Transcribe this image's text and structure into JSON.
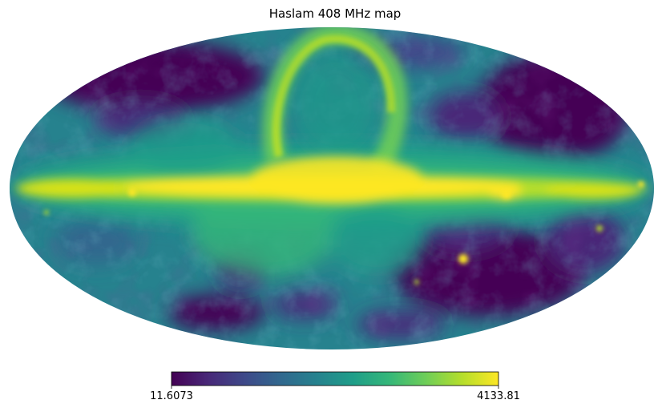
{
  "title": "Haslam 408 MHz map",
  "map": {
    "projection": "mollweide",
    "colormap": "viridis",
    "features": [
      "galactic-plane-band",
      "north-polar-spur-loop",
      "cold-regions-high-latitude",
      "bright-point-sources"
    ]
  },
  "colorbar": {
    "min_label": "11.6073",
    "max_label": "4133.81",
    "min": 11.6073,
    "max": 4133.81,
    "orientation": "horizontal",
    "colors": [
      "#440154",
      "#482878",
      "#3e4989",
      "#31688e",
      "#26828e",
      "#1f9e89",
      "#35b779",
      "#6ece58",
      "#b5de2b",
      "#fde725"
    ]
  }
}
